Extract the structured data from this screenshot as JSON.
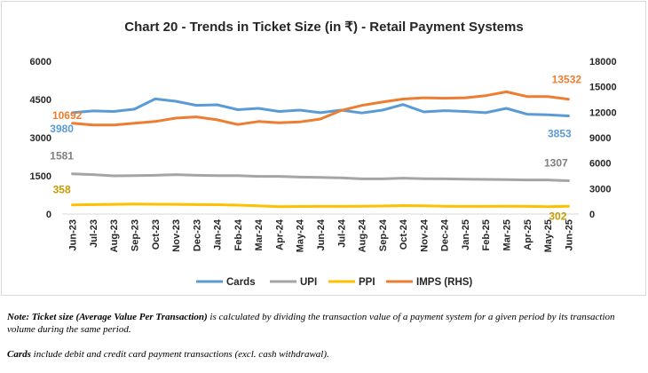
{
  "chart_data": {
    "type": "line",
    "title": "Chart 20 - Trends in Ticket Size (in ₹) - Retail Payment Systems",
    "categories": [
      "Jun-23",
      "Jul-23",
      "Aug-23",
      "Sep-23",
      "Oct-23",
      "Nov-23",
      "Dec-23",
      "Jan-24",
      "Feb-24",
      "Mar-24",
      "Apr-24",
      "May-24",
      "Jun-24",
      "Jul-24",
      "Aug-24",
      "Sep-24",
      "Oct-24",
      "Nov-24",
      "Dec-24",
      "Jan-25",
      "Feb-25",
      "Mar-25",
      "Apr-25",
      "May-25",
      "Jun-25"
    ],
    "ylim_left": [
      0,
      6000
    ],
    "yticks_left": [
      0,
      1500,
      3000,
      4500,
      6000
    ],
    "ylim_right": [
      0,
      18000
    ],
    "yticks_right": [
      0,
      3000,
      6000,
      9000,
      12000,
      15000,
      18000
    ],
    "grid": false,
    "legend_position": "bottom",
    "series": [
      {
        "name": "Cards",
        "axis": "left",
        "color": "#5b9bd5",
        "values": [
          3980,
          4050,
          4030,
          4120,
          4520,
          4430,
          4270,
          4290,
          4100,
          4150,
          4030,
          4080,
          3980,
          4080,
          3970,
          4080,
          4300,
          4010,
          4060,
          4030,
          3980,
          4150,
          3920,
          3900,
          3853
        ],
        "first_label": "3980",
        "last_label": "3853"
      },
      {
        "name": "UPI",
        "axis": "left",
        "color": "#a5a5a5",
        "values": [
          1581,
          1550,
          1500,
          1510,
          1520,
          1550,
          1520,
          1510,
          1510,
          1480,
          1480,
          1450,
          1440,
          1420,
          1380,
          1380,
          1410,
          1390,
          1380,
          1370,
          1360,
          1350,
          1340,
          1340,
          1307
        ],
        "first_label": "1581",
        "last_label": "1307"
      },
      {
        "name": "PPI",
        "axis": "left",
        "color": "#ffc000",
        "values": [
          358,
          370,
          380,
          390,
          385,
          380,
          370,
          365,
          350,
          320,
          290,
          295,
          300,
          300,
          305,
          315,
          330,
          320,
          305,
          300,
          300,
          305,
          300,
          290,
          302
        ],
        "first_label": "358",
        "last_label": "302"
      },
      {
        "name": "IMPS (RHS)",
        "axis": "right",
        "color": "#ed7d31",
        "values": [
          10692,
          10500,
          10500,
          10700,
          10900,
          11300,
          11450,
          11100,
          10550,
          10900,
          10750,
          10850,
          11200,
          12200,
          12800,
          13200,
          13550,
          13700,
          13650,
          13700,
          13950,
          14400,
          13850,
          13850,
          13532
        ],
        "first_label": "10692",
        "last_label": "13532"
      }
    ]
  },
  "notes": {
    "note_bold": "Note: Ticket size (Average Value Per Transaction)",
    "note_rest": " is calculated by dividing the transaction value of a payment system for a given period by its transaction volume during the same period.",
    "cards_bold": "Cards",
    "cards_rest": " include debit and credit card payment transactions (excl. cash withdrawal)."
  }
}
